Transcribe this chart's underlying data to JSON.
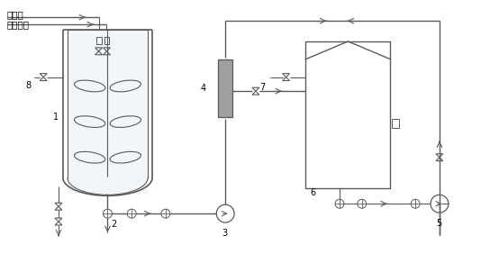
{
  "bg_color": "#ffffff",
  "line_color": "#5a5a5a",
  "fig_size": [
    5.44,
    2.92
  ],
  "dpi": 100
}
